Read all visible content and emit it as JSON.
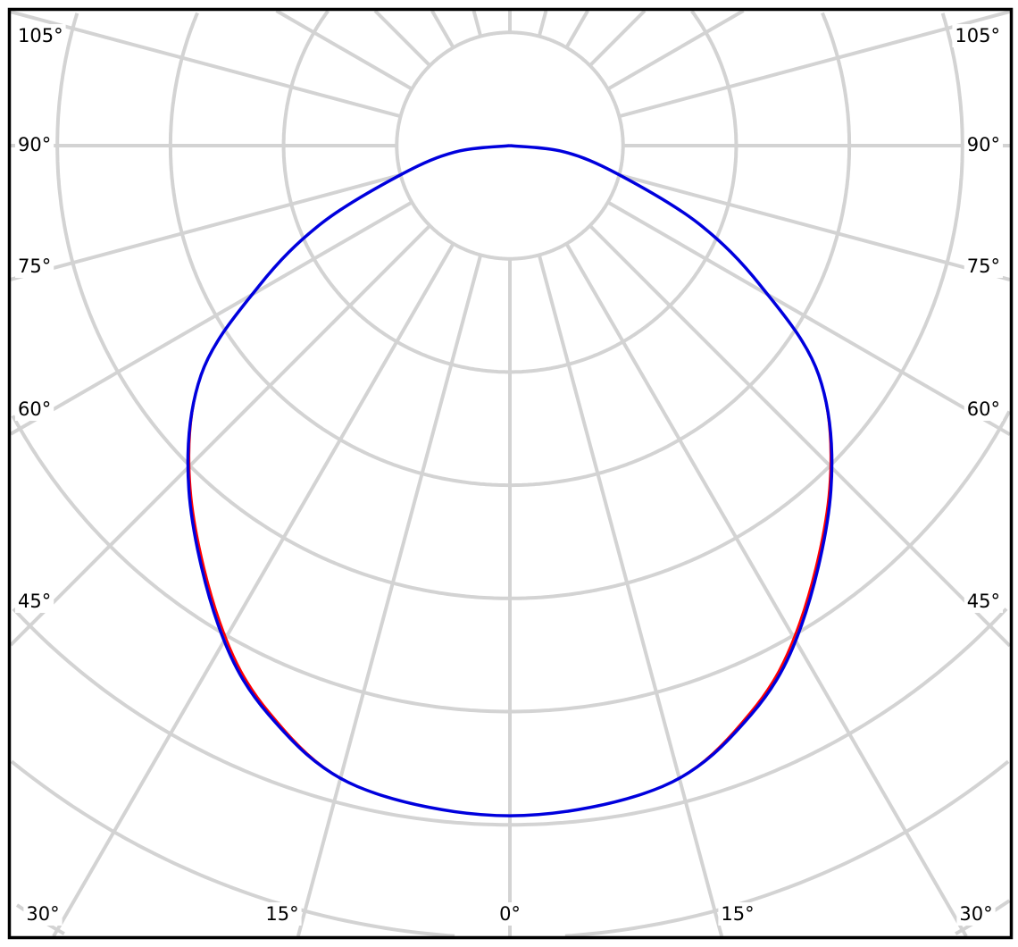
{
  "chart_data": {
    "type": "line",
    "subtype": "polar",
    "title": "",
    "angle_zero_direction": "down",
    "grid": true,
    "angle_grid_step_deg": 15,
    "radial_grid_rings": 10,
    "radial_unit_labels": "none",
    "left_tick_labels": [
      "105°",
      "90°",
      "75°",
      "60°",
      "45°"
    ],
    "right_tick_labels": [
      "105°",
      "90°",
      "75°",
      "60°",
      "45°"
    ],
    "bottom_tick_labels": [
      "30°",
      "15°",
      "0°",
      "15°",
      "30°"
    ],
    "colors": {
      "grid": "#d3d3d3",
      "frame": "#000000",
      "series_a": "#ff0000",
      "series_b": "#0000dd"
    },
    "series": [
      {
        "color": "#ff0000",
        "angles_deg": [
          0,
          13.4,
          23,
          31.3,
          43,
          53.4,
          60.8,
          67.6,
          75.2,
          83.5,
          90
        ],
        "values": [
          5.92,
          5.82,
          5.44,
          4.93,
          4.14,
          3.4,
          2.54,
          1.8,
          0.99,
          0.48,
          0
        ]
      },
      {
        "color": "#0000dd",
        "angles_deg": [
          0,
          13.4,
          23,
          31.3,
          43,
          53.4,
          60.8,
          67.6,
          75.2,
          83.5,
          90
        ],
        "values": [
          5.92,
          5.82,
          5.46,
          4.96,
          4.16,
          3.4,
          2.54,
          1.8,
          0.99,
          0.48,
          0
        ]
      }
    ]
  }
}
